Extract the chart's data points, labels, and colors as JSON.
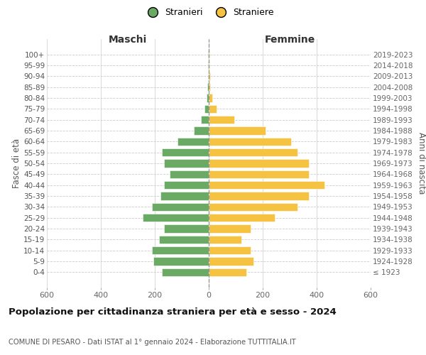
{
  "age_groups": [
    "100+",
    "95-99",
    "90-94",
    "85-89",
    "80-84",
    "75-79",
    "70-74",
    "65-69",
    "60-64",
    "55-59",
    "50-54",
    "45-49",
    "40-44",
    "35-39",
    "30-34",
    "25-29",
    "20-24",
    "15-19",
    "10-14",
    "5-9",
    "0-4"
  ],
  "birth_years": [
    "≤ 1923",
    "1924-1928",
    "1929-1933",
    "1934-1938",
    "1939-1943",
    "1944-1948",
    "1949-1953",
    "1954-1958",
    "1959-1963",
    "1964-1968",
    "1969-1973",
    "1974-1978",
    "1979-1983",
    "1984-1988",
    "1989-1993",
    "1994-1998",
    "1999-2003",
    "2004-2008",
    "2009-2013",
    "2014-2018",
    "2019-2023"
  ],
  "males": [
    2,
    2,
    3,
    5,
    8,
    15,
    30,
    55,
    115,
    175,
    165,
    145,
    165,
    180,
    210,
    245,
    165,
    185,
    210,
    205,
    175
  ],
  "females": [
    2,
    3,
    4,
    5,
    12,
    30,
    95,
    210,
    305,
    330,
    370,
    370,
    430,
    370,
    330,
    245,
    155,
    120,
    155,
    165,
    140
  ],
  "male_color": "#6aaa64",
  "female_color": "#f5c242",
  "background_color": "#ffffff",
  "grid_color": "#cccccc",
  "title": "Popolazione per cittadinanza straniera per età e sesso - 2024",
  "subtitle": "COMUNE DI PESARO - Dati ISTAT al 1° gennaio 2024 - Elaborazione TUTTITALIA.IT",
  "left_label": "Maschi",
  "right_label": "Femmine",
  "ylabel": "Fasce di età",
  "ylabel_right": "Anni di nascita",
  "legend_male": "Stranieri",
  "legend_female": "Straniere",
  "xlim": 600,
  "dashed_line_color": "#999999"
}
